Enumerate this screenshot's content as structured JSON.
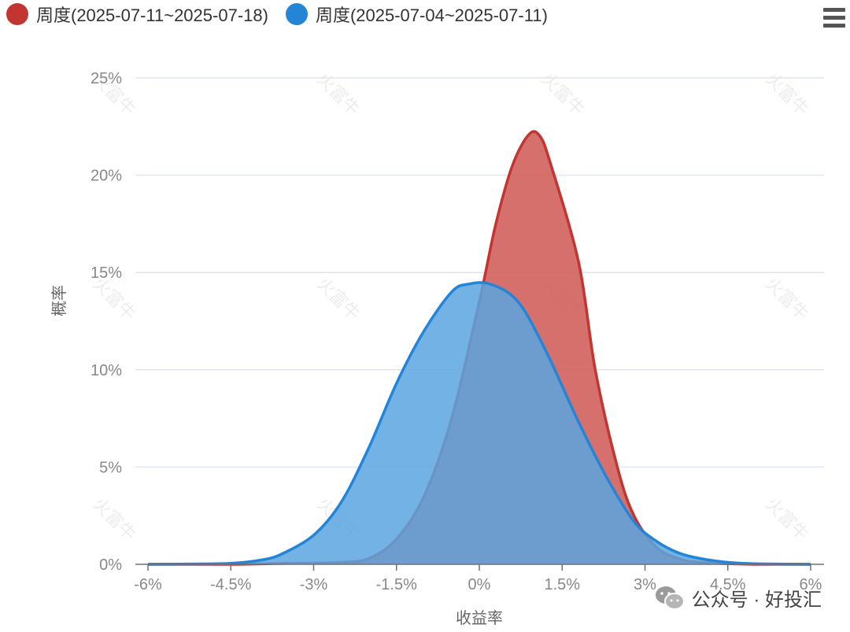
{
  "legend": {
    "items": [
      {
        "label": "周度(2025-07-11~2025-07-18)",
        "color": "#C23531"
      },
      {
        "label": "周度(2025-07-04~2025-07-11)",
        "color": "#2485D6"
      }
    ]
  },
  "watermark": {
    "text": "火富牛"
  },
  "footer": {
    "text": "公众号 · 好投汇"
  },
  "chart_data": {
    "type": "area",
    "xlabel": "收益率",
    "ylabel": "概率",
    "xlim": [
      -6,
      6
    ],
    "ylim": [
      0,
      25
    ],
    "x_ticks": [
      -6,
      -4.5,
      -3,
      -1.5,
      0,
      1.5,
      3,
      4.5,
      6
    ],
    "x_tick_labels": [
      "-6%",
      "-4.5%",
      "-3%",
      "-1.5%",
      "0%",
      "1.5%",
      "3%",
      "4.5%",
      "6%"
    ],
    "y_ticks": [
      0,
      5,
      10,
      15,
      20,
      25
    ],
    "y_tick_labels": [
      "0%",
      "5%",
      "10%",
      "15%",
      "20%",
      "25%"
    ],
    "grid": true,
    "legend_position": "top-left",
    "series": [
      {
        "name": "周度(2025-07-11~2025-07-18)",
        "color": "#C23531",
        "fill": "#D0605C",
        "points": [
          [
            -6,
            0
          ],
          [
            -4.5,
            0
          ],
          [
            -3.5,
            0.05
          ],
          [
            -2.5,
            0.1
          ],
          [
            -2,
            0.3
          ],
          [
            -1.5,
            1.3
          ],
          [
            -1,
            3.5
          ],
          [
            -0.5,
            7.5
          ],
          [
            0,
            13.5
          ],
          [
            0.3,
            17.5
          ],
          [
            0.6,
            20.5
          ],
          [
            0.9,
            22.1
          ],
          [
            1.1,
            22.0
          ],
          [
            1.3,
            20.5
          ],
          [
            1.8,
            15.5
          ],
          [
            2.1,
            10
          ],
          [
            2.5,
            5
          ],
          [
            2.8,
            2.5
          ],
          [
            3.2,
            0.9
          ],
          [
            3.6,
            0.3
          ],
          [
            4,
            0.1
          ],
          [
            5,
            0
          ],
          [
            6,
            0
          ]
        ]
      },
      {
        "name": "周度(2025-07-04~2025-07-11)",
        "color": "#2485D6",
        "fill": "#5BA5E0",
        "points": [
          [
            -6,
            0
          ],
          [
            -5,
            0.02
          ],
          [
            -4.5,
            0.05
          ],
          [
            -4,
            0.2
          ],
          [
            -3.6,
            0.5
          ],
          [
            -3,
            1.5
          ],
          [
            -2.5,
            3.2
          ],
          [
            -2,
            6
          ],
          [
            -1.5,
            9.3
          ],
          [
            -1,
            12
          ],
          [
            -0.5,
            14
          ],
          [
            -0.2,
            14.4
          ],
          [
            0.2,
            14.4
          ],
          [
            0.7,
            13.5
          ],
          [
            1.2,
            11
          ],
          [
            1.8,
            7.3
          ],
          [
            2.3,
            4.5
          ],
          [
            2.8,
            2.2
          ],
          [
            3.2,
            1.2
          ],
          [
            3.6,
            0.6
          ],
          [
            4,
            0.3
          ],
          [
            4.5,
            0.1
          ],
          [
            5,
            0.03
          ],
          [
            6,
            0
          ]
        ]
      }
    ]
  }
}
